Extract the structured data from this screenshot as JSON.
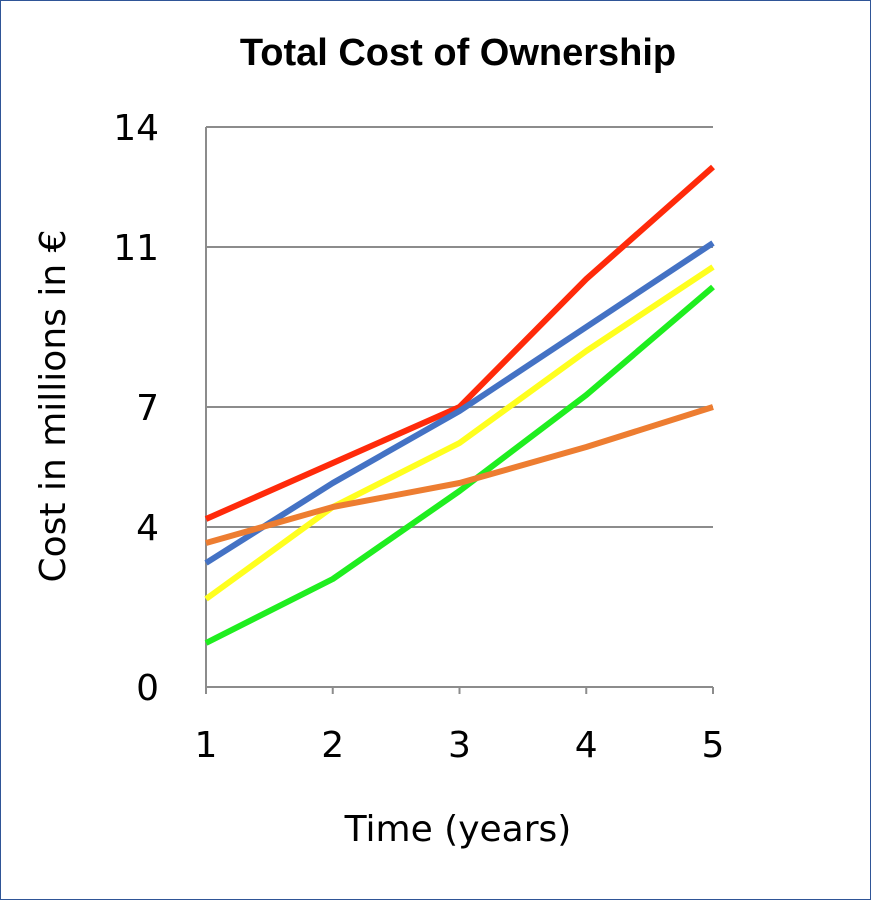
{
  "chart_data": {
    "type": "line",
    "title": "Total Cost of Ownership",
    "xlabel": "Time (years)",
    "ylabel": "Cost in millions in €",
    "x": [
      1,
      2,
      3,
      4,
      5
    ],
    "x_tick_labels": [
      "1",
      "2",
      "3",
      "4",
      "5"
    ],
    "y_ticks": [
      0,
      4,
      7,
      11,
      14
    ],
    "y_tick_labels": [
      "0",
      "4",
      "7",
      "11",
      "14"
    ],
    "ylim": [
      0,
      14
    ],
    "grid": "horizontal",
    "legend": "none",
    "series": [
      {
        "color": "#ff2a0a",
        "values": [
          4.2,
          5.6,
          7.0,
          10.2,
          13.0
        ]
      },
      {
        "color": "#4472c4",
        "values": [
          3.1,
          5.1,
          6.9,
          9.0,
          11.1
        ]
      },
      {
        "color": "#ffff1f",
        "values": [
          2.2,
          4.5,
          6.1,
          8.4,
          10.5
        ]
      },
      {
        "color": "#1fee1f",
        "values": [
          1.1,
          2.7,
          4.9,
          7.3,
          10.0
        ]
      },
      {
        "color": "#ed7d31",
        "values": [
          3.6,
          4.5,
          5.1,
          6.0,
          7.0
        ]
      }
    ]
  }
}
